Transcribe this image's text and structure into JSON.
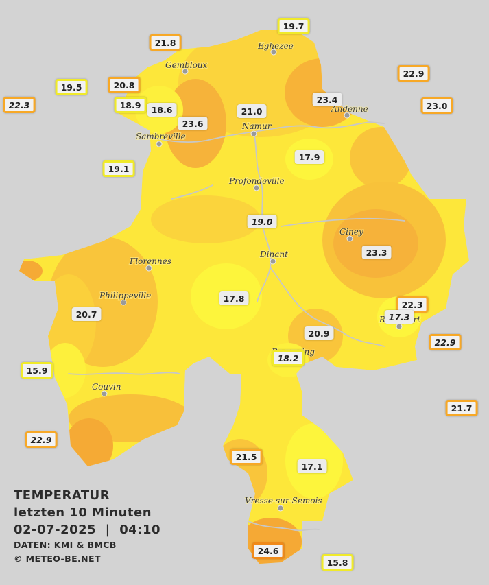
{
  "legend": {
    "title": "TEMPERATUR",
    "subtitle": "letzten 10 Minuten",
    "datetime": "02-07-2025  |  04:10",
    "source": "DATEN: KMI & BMCB",
    "copyright": "© METEO-BE.NET"
  },
  "colors": {
    "background": "#d3d3d3",
    "cool": "#fdf136",
    "mild": "#fbd93a",
    "warm": "#f9bf36",
    "hot": "#f6a52f",
    "river": "#c9c9c9"
  },
  "cities": [
    {
      "name": "Eghezee"
    },
    {
      "name": "Gembloux"
    },
    {
      "name": "Andenne"
    },
    {
      "name": "Namur"
    },
    {
      "name": "Sambreville"
    },
    {
      "name": "Profondeville"
    },
    {
      "name": "Ciney"
    },
    {
      "name": "Dinant"
    },
    {
      "name": "Florennes"
    },
    {
      "name": "Philippeville"
    },
    {
      "name": "Rochefort"
    },
    {
      "name": "Beauraing"
    },
    {
      "name": "Couvin"
    },
    {
      "name": "Vresse-sur-Semois"
    }
  ],
  "stations": [
    {
      "value": "19.7",
      "style": "ring-y"
    },
    {
      "value": "21.8",
      "style": "ring"
    },
    {
      "value": "22.9",
      "style": "ring"
    },
    {
      "value": "19.5",
      "style": "ring-y"
    },
    {
      "value": "20.8",
      "style": "ring"
    },
    {
      "value": "22.3",
      "style": "ring it"
    },
    {
      "value": "18.9",
      "style": "ring-y"
    },
    {
      "value": "18.6",
      "style": "plain"
    },
    {
      "value": "23.6",
      "style": "plain"
    },
    {
      "value": "21.0",
      "style": "plain"
    },
    {
      "value": "23.4",
      "style": "plain"
    },
    {
      "value": "23.0",
      "style": "ring"
    },
    {
      "value": "17.9",
      "style": "plain"
    },
    {
      "value": "19.1",
      "style": "ring-y"
    },
    {
      "value": "19.0",
      "style": "plain it"
    },
    {
      "value": "23.3",
      "style": "plain"
    },
    {
      "value": "17.8",
      "style": "plain"
    },
    {
      "value": "22.3",
      "style": "ring"
    },
    {
      "value": "17.3",
      "style": "plain it"
    },
    {
      "value": "20.7",
      "style": "plain"
    },
    {
      "value": "20.9",
      "style": "plain"
    },
    {
      "value": "22.9",
      "style": "ring it"
    },
    {
      "value": "18.2",
      "style": "ring-y it"
    },
    {
      "value": "15.9",
      "style": "ring-y"
    },
    {
      "value": "21.7",
      "style": "ring"
    },
    {
      "value": "22.9",
      "style": "ring it"
    },
    {
      "value": "21.5",
      "style": "ring"
    },
    {
      "value": "17.1",
      "style": "plain"
    },
    {
      "value": "24.6",
      "style": "ring-o"
    },
    {
      "value": "15.8",
      "style": "ring-y"
    }
  ]
}
